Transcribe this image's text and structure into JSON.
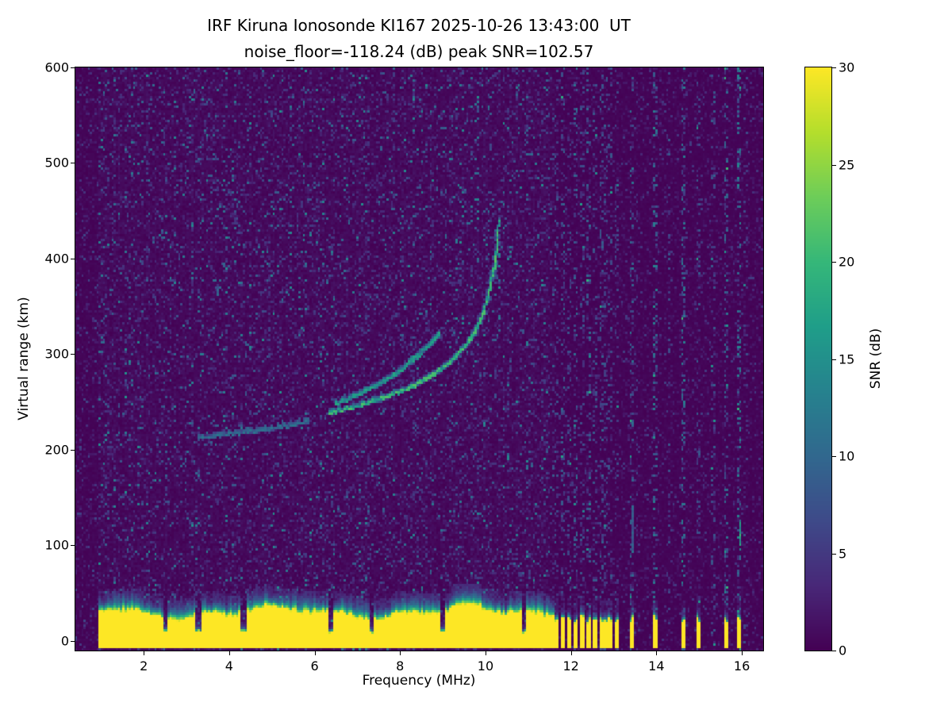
{
  "chart_data": {
    "type": "heatmap",
    "title": "IRF Kiruna Ionosonde KI167 2025-10-26 13:43:00  UT",
    "subtitle": "noise_floor=-118.24 (dB) peak SNR=102.57",
    "station": "IRF Kiruna Ionosonde KI167",
    "timestamp_ut": "2025-10-26 13:43:00",
    "noise_floor_db": -118.24,
    "peak_snr_db": 102.57,
    "xlabel": "Frequency (MHz)",
    "ylabel": "Virtual range (km)",
    "colorbar_label": "SNR (dB)",
    "xlim": [
      0.4,
      16.5
    ],
    "ylim": [
      -10,
      600
    ],
    "clim": [
      0,
      30
    ],
    "xticks": [
      2,
      4,
      6,
      8,
      10,
      12,
      14,
      16
    ],
    "yticks": [
      0,
      100,
      200,
      300,
      400,
      500,
      600
    ],
    "colorbar_ticks": [
      0,
      5,
      10,
      15,
      20,
      25,
      30
    ],
    "colormap": "viridis",
    "colormap_stops": [
      "#440154",
      "#482878",
      "#3e4a89",
      "#31688e",
      "#26828e",
      "#1f9e89",
      "#35b779",
      "#6dcd59",
      "#b4de2c",
      "#fde725"
    ],
    "features": {
      "data_start_mhz": 0.95,
      "clutter_end_mhz": 11.62,
      "clutter_top_km": 27,
      "clutter_bottom_km": -7,
      "clutter_notches_mhz": [
        2.5,
        3.3,
        4.35,
        6.4,
        7.35,
        9.0,
        10.9
      ],
      "faint_streaks": [
        {
          "f": 4.95,
          "r0": 295,
          "r1": 435,
          "density": 0.4,
          "vmax": 5
        },
        {
          "f": 7.28,
          "r0": 50,
          "r1": 560,
          "density": 0.15,
          "vmax": 4
        }
      ],
      "traces": [
        {
          "name": "F-region echo low ramp",
          "vmin": 4,
          "vmax": 12,
          "points": [
            [
              3.3,
              212
            ],
            [
              4.0,
              216
            ],
            [
              5.0,
              222
            ],
            [
              5.85,
              229
            ]
          ]
        },
        {
          "name": "F-region echo main",
          "vmin": 8,
          "vmax": 22,
          "points": [
            [
              6.35,
              238
            ],
            [
              7.0,
              246
            ],
            [
              7.6,
              254
            ],
            [
              8.2,
              264
            ],
            [
              8.7,
              276
            ],
            [
              9.2,
              292
            ],
            [
              9.6,
              312
            ],
            [
              9.9,
              335
            ],
            [
              10.1,
              365
            ],
            [
              10.25,
              400
            ],
            [
              10.32,
              438
            ]
          ]
        },
        {
          "name": "F-region echo upper branch",
          "vmin": 6,
          "vmax": 18,
          "points": [
            [
              6.5,
              248
            ],
            [
              7.0,
              257
            ],
            [
              7.5,
              268
            ],
            [
              8.0,
              282
            ],
            [
              8.4,
              297
            ],
            [
              8.7,
              310
            ],
            [
              8.95,
              322
            ]
          ]
        }
      ],
      "interference_stripes": [
        {
          "f": 11.68,
          "w": 0.06,
          "noise": 0.5,
          "stub": true
        },
        {
          "f": 11.83,
          "w": 0.06,
          "noise": 0.7,
          "stub": true
        },
        {
          "f": 11.98,
          "w": 0.06,
          "noise": 0.5,
          "stub": true
        },
        {
          "f": 12.13,
          "w": 0.06,
          "noise": 0.8,
          "stub": true
        },
        {
          "f": 12.28,
          "w": 0.06,
          "noise": 0.5,
          "stub": true
        },
        {
          "f": 12.43,
          "w": 0.06,
          "noise": 0.7,
          "stub": true
        },
        {
          "f": 12.59,
          "w": 0.06,
          "noise": 0.5,
          "stub": true
        },
        {
          "f": 12.75,
          "w": 0.06,
          "noise": 0.6,
          "stub": true
        },
        {
          "f": 12.91,
          "w": 0.06,
          "noise": 0.5,
          "stub": true
        },
        {
          "f": 13.07,
          "w": 0.06,
          "noise": 0.4,
          "stub": true
        },
        {
          "f": 13.45,
          "w": 0.05,
          "noise": 0.8,
          "stub": true
        },
        {
          "f": 13.56,
          "w": 0.04,
          "noise": 0.3,
          "stub": false
        },
        {
          "f": 14.0,
          "w": 0.05,
          "noise": 0.9,
          "stub": true
        },
        {
          "f": 14.32,
          "w": 0.04,
          "noise": 0.5,
          "stub": false
        },
        {
          "f": 14.65,
          "w": 0.05,
          "noise": 0.9,
          "stub": true
        },
        {
          "f": 15.0,
          "w": 0.05,
          "noise": 0.5,
          "stub": true
        },
        {
          "f": 15.33,
          "w": 0.04,
          "noise": 0.6,
          "stub": false
        },
        {
          "f": 15.65,
          "w": 0.05,
          "noise": 0.8,
          "stub": true
        },
        {
          "f": 15.95,
          "w": 0.05,
          "noise": 1.0,
          "stub": true
        },
        {
          "f": 16.1,
          "w": 0.04,
          "noise": 0.4,
          "stub": false
        }
      ],
      "hot_spots": [
        {
          "f": 15.97,
          "r0": 100,
          "r1": 122,
          "v": 22
        },
        {
          "f": 13.46,
          "r0": 95,
          "r1": 140,
          "v": 10
        }
      ]
    }
  }
}
